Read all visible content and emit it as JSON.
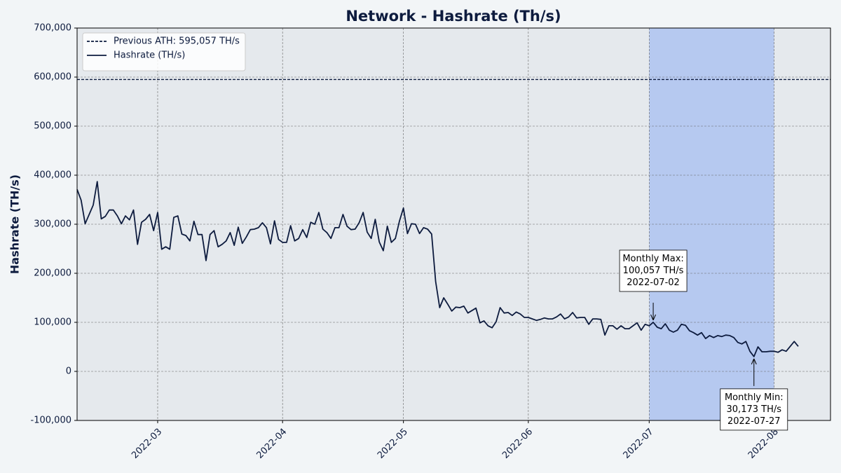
{
  "chart_data": {
    "type": "line",
    "title": "Network - Hashrate (Th/s)",
    "y_label": "Hashrate (TH/s)",
    "x": [
      "2022-02-09",
      "2022-02-10",
      "2022-02-11",
      "2022-02-12",
      "2022-02-13",
      "2022-02-14",
      "2022-02-15",
      "2022-02-16",
      "2022-02-17",
      "2022-02-18",
      "2022-02-19",
      "2022-02-20",
      "2022-02-21",
      "2022-02-22",
      "2022-02-23",
      "2022-02-24",
      "2022-02-25",
      "2022-02-26",
      "2022-02-27",
      "2022-02-28",
      "2022-03-01",
      "2022-03-02",
      "2022-03-03",
      "2022-03-04",
      "2022-03-05",
      "2022-03-06",
      "2022-03-07",
      "2022-03-08",
      "2022-03-09",
      "2022-03-10",
      "2022-03-11",
      "2022-03-12",
      "2022-03-13",
      "2022-03-14",
      "2022-03-15",
      "2022-03-16",
      "2022-03-17",
      "2022-03-18",
      "2022-03-19",
      "2022-03-20",
      "2022-03-21",
      "2022-03-22",
      "2022-03-23",
      "2022-03-24",
      "2022-03-25",
      "2022-03-26",
      "2022-03-27",
      "2022-03-28",
      "2022-03-29",
      "2022-03-30",
      "2022-03-31",
      "2022-04-01",
      "2022-04-02",
      "2022-04-03",
      "2022-04-04",
      "2022-04-05",
      "2022-04-06",
      "2022-04-07",
      "2022-04-08",
      "2022-04-09",
      "2022-04-10",
      "2022-04-11",
      "2022-04-12",
      "2022-04-13",
      "2022-04-14",
      "2022-04-15",
      "2022-04-16",
      "2022-04-17",
      "2022-04-18",
      "2022-04-19",
      "2022-04-20",
      "2022-04-21",
      "2022-04-22",
      "2022-04-23",
      "2022-04-24",
      "2022-04-25",
      "2022-04-26",
      "2022-04-27",
      "2022-04-28",
      "2022-04-29",
      "2022-04-30",
      "2022-05-01",
      "2022-05-02",
      "2022-05-03",
      "2022-05-04",
      "2022-05-05",
      "2022-05-06",
      "2022-05-07",
      "2022-05-08",
      "2022-05-09",
      "2022-05-10",
      "2022-05-11",
      "2022-05-12",
      "2022-05-13",
      "2022-05-14",
      "2022-05-15",
      "2022-05-16",
      "2022-05-17",
      "2022-05-18",
      "2022-05-19",
      "2022-05-20",
      "2022-05-21",
      "2022-05-22",
      "2022-05-23",
      "2022-05-24",
      "2022-05-25",
      "2022-05-26",
      "2022-05-27",
      "2022-05-28",
      "2022-05-29",
      "2022-05-30",
      "2022-05-31",
      "2022-06-01",
      "2022-06-02",
      "2022-06-03",
      "2022-06-04",
      "2022-06-05",
      "2022-06-06",
      "2022-06-07",
      "2022-06-08",
      "2022-06-09",
      "2022-06-10",
      "2022-06-11",
      "2022-06-12",
      "2022-06-13",
      "2022-06-14",
      "2022-06-15",
      "2022-06-16",
      "2022-06-17",
      "2022-06-18",
      "2022-06-19",
      "2022-06-20",
      "2022-06-21",
      "2022-06-22",
      "2022-06-23",
      "2022-06-24",
      "2022-06-25",
      "2022-06-26",
      "2022-06-27",
      "2022-06-28",
      "2022-06-29",
      "2022-06-30",
      "2022-07-01",
      "2022-07-02",
      "2022-07-03",
      "2022-07-04",
      "2022-07-05",
      "2022-07-06",
      "2022-07-07",
      "2022-07-08",
      "2022-07-09",
      "2022-07-10",
      "2022-07-11",
      "2022-07-12",
      "2022-07-13",
      "2022-07-14",
      "2022-07-15",
      "2022-07-16",
      "2022-07-17",
      "2022-07-18",
      "2022-07-19",
      "2022-07-20",
      "2022-07-21",
      "2022-07-22",
      "2022-07-23",
      "2022-07-24",
      "2022-07-25",
      "2022-07-26",
      "2022-07-27",
      "2022-07-28",
      "2022-07-29",
      "2022-07-30",
      "2022-07-31",
      "2022-08-01",
      "2022-08-02",
      "2022-08-03",
      "2022-08-04",
      "2022-08-05",
      "2022-08-06",
      "2022-08-07"
    ],
    "series": [
      {
        "name": "Hashrate (TH/s)",
        "color": "#0d1b3e",
        "values": [
          371000,
          349000,
          301000,
          320000,
          339000,
          387000,
          311000,
          316000,
          329000,
          329000,
          317000,
          301000,
          317000,
          309000,
          329000,
          259000,
          304000,
          310000,
          320000,
          287000,
          324000,
          249000,
          254000,
          249000,
          314000,
          317000,
          280000,
          277000,
          266000,
          306000,
          279000,
          279000,
          226000,
          279000,
          287000,
          254000,
          259000,
          266000,
          283000,
          257000,
          294000,
          261000,
          274000,
          289000,
          290000,
          293000,
          303000,
          293000,
          260000,
          307000,
          269000,
          263000,
          263000,
          297000,
          266000,
          271000,
          289000,
          273000,
          304000,
          300000,
          324000,
          290000,
          283000,
          271000,
          293000,
          293000,
          320000,
          296000,
          289000,
          290000,
          303000,
          324000,
          284000,
          271000,
          310000,
          264000,
          246000,
          296000,
          263000,
          271000,
          306000,
          333000,
          281000,
          301000,
          300000,
          281000,
          293000,
          290000,
          280000,
          183000,
          130000,
          150000,
          137000,
          123000,
          131000,
          130000,
          133000,
          119000,
          124000,
          129000,
          99000,
          103000,
          93000,
          89000,
          101000,
          130000,
          119000,
          120000,
          114000,
          121000,
          117000,
          110000,
          110000,
          107000,
          104000,
          106000,
          109000,
          107000,
          107000,
          111000,
          117000,
          107000,
          111000,
          120000,
          109000,
          110000,
          110000,
          96000,
          107000,
          107000,
          106000,
          74000,
          93000,
          93000,
          86000,
          93000,
          87000,
          87000,
          93000,
          99000,
          84000,
          96000,
          93000,
          100057,
          90000,
          87000,
          97000,
          84000,
          80000,
          84000,
          96000,
          94000,
          83000,
          79000,
          74000,
          79000,
          67000,
          73000,
          69000,
          73000,
          71000,
          74000,
          73000,
          69000,
          59000,
          56000,
          61000,
          41000,
          30173,
          50000,
          40000,
          40000,
          41000,
          41000,
          39000,
          44000,
          41000,
          51000,
          61000,
          51000
        ]
      }
    ],
    "reference_lines": [
      {
        "name": "Previous ATH: 595,057 TH/s",
        "value": 595057,
        "color": "#0d1b3e",
        "style": "dashed"
      }
    ],
    "highlight": {
      "start": "2022-07-01",
      "end": "2022-08-01",
      "color": "#b6c9f0"
    },
    "annotations": [
      {
        "lines": [
          "Monthly Max:",
          "100,057 TH/s",
          "2022-07-02"
        ],
        "x": "2022-07-02",
        "y": 100057,
        "placement": "above"
      },
      {
        "lines": [
          "Monthly Min:",
          "30,173 TH/s",
          "2022-07-27"
        ],
        "x": "2022-07-27",
        "y": 30173,
        "placement": "below"
      }
    ],
    "xlim": [
      "2022-02-09",
      "2022-08-15"
    ],
    "xticks": [
      {
        "value": "2022-03-01",
        "label": "2022-03"
      },
      {
        "value": "2022-04-01",
        "label": "2022-04"
      },
      {
        "value": "2022-05-01",
        "label": "2022-05"
      },
      {
        "value": "2022-06-01",
        "label": "2022-06"
      },
      {
        "value": "2022-07-01",
        "label": "2022-07"
      },
      {
        "value": "2022-08-01",
        "label": "2022-08"
      }
    ],
    "ylim": [
      -100000,
      700000
    ],
    "yticks": [
      {
        "value": -100000,
        "label": "-100,000"
      },
      0,
      {
        "value": 100000,
        "label": "100,000"
      },
      {
        "value": 200000,
        "label": "200,000"
      },
      {
        "value": 300000,
        "label": "300,000"
      },
      {
        "value": 400000,
        "label": "400,000"
      },
      {
        "value": 500000,
        "label": "500,000"
      },
      {
        "value": 600000,
        "label": "600,000"
      },
      {
        "value": 700000,
        "label": "700,000"
      }
    ],
    "grid": true,
    "legend": "upper left"
  }
}
